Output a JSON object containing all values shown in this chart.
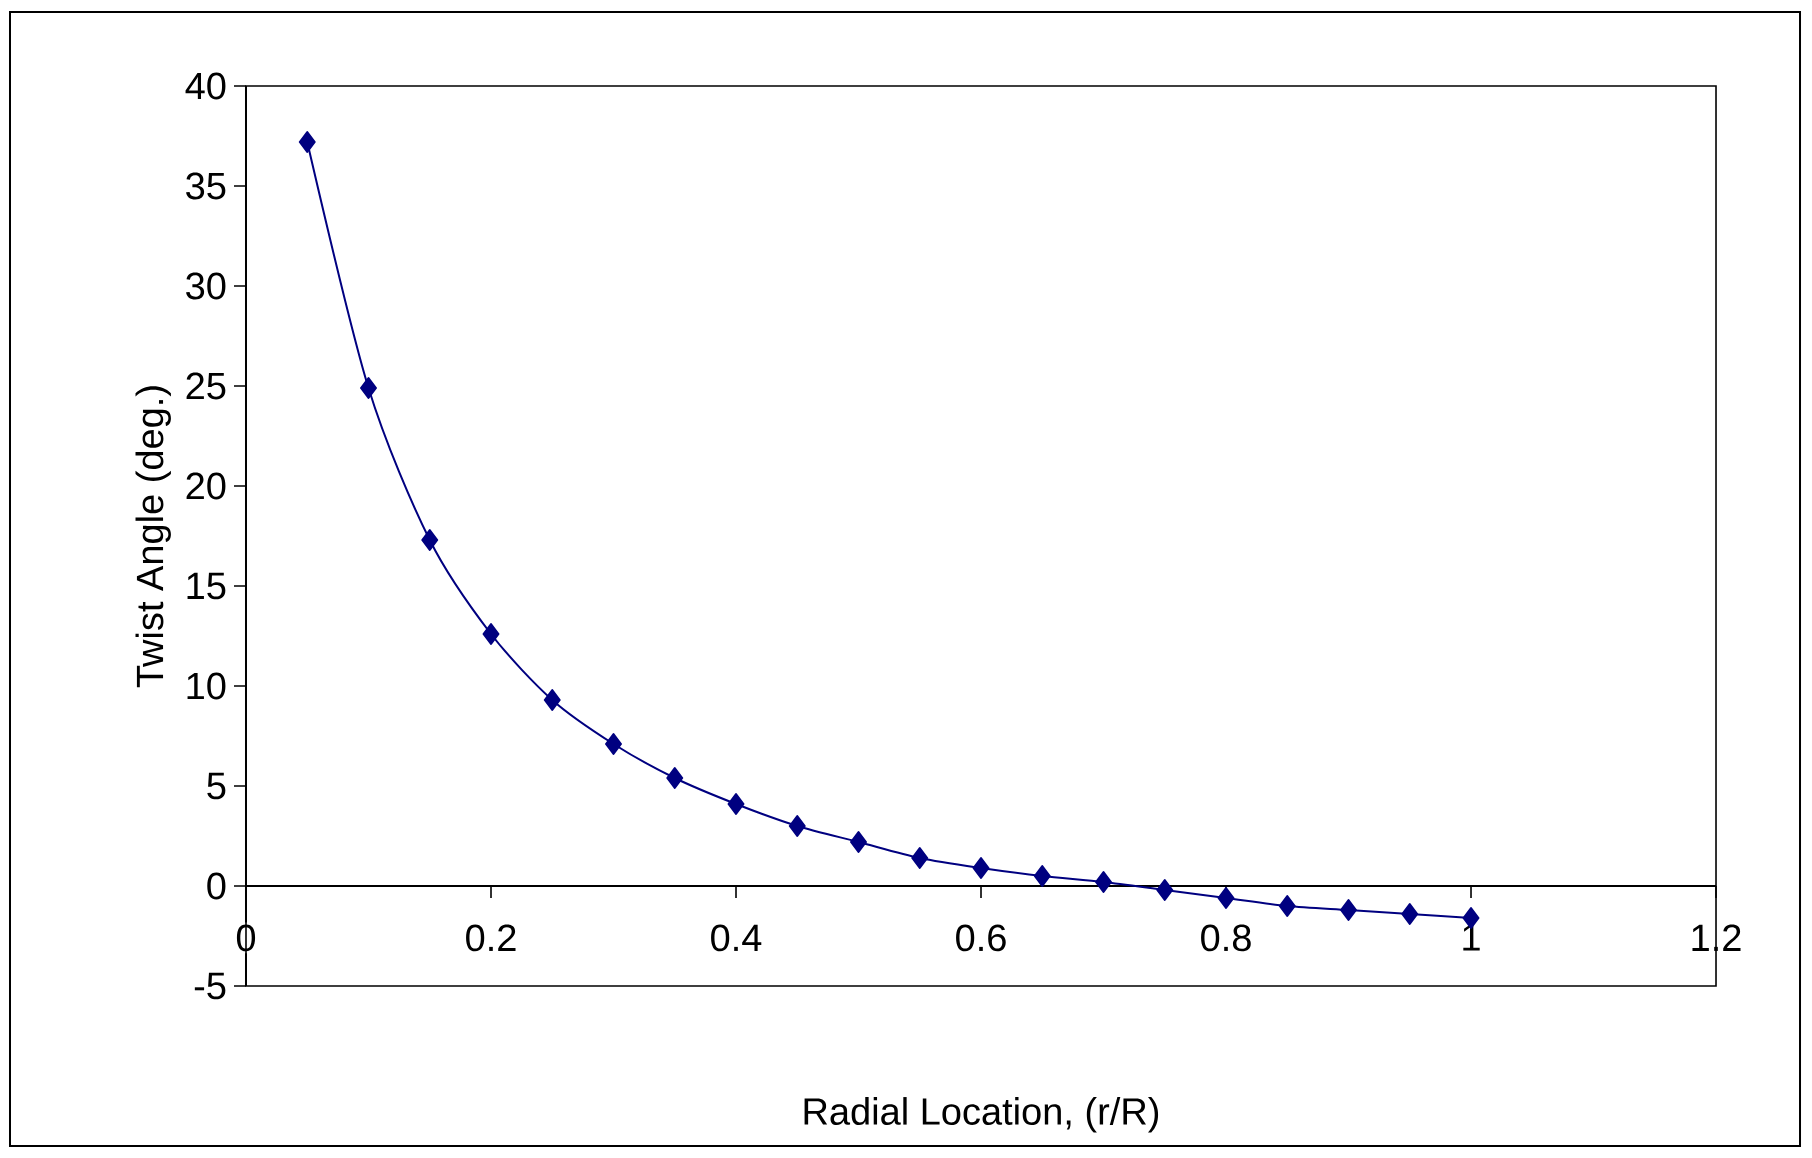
{
  "chart_data": {
    "type": "line",
    "xlabel": "Radial Location, (r/R)",
    "ylabel": "Twist Angle (deg.)",
    "x": [
      0.05,
      0.1,
      0.15,
      0.2,
      0.25,
      0.3,
      0.35,
      0.4,
      0.45,
      0.5,
      0.55,
      0.6,
      0.65,
      0.7,
      0.75,
      0.8,
      0.85,
      0.9,
      0.95,
      1.0
    ],
    "values": [
      37.2,
      24.9,
      17.3,
      12.6,
      9.3,
      7.1,
      5.4,
      4.1,
      3.0,
      2.2,
      1.4,
      0.9,
      0.5,
      0.2,
      -0.2,
      -0.6,
      -1.0,
      -1.2,
      -1.4,
      -1.6
    ],
    "color": "#000080",
    "marker": "diamond",
    "line_style": "solid",
    "xlim": [
      0,
      1.2
    ],
    "xticks": [
      0,
      0.2,
      0.4,
      0.6,
      0.8,
      1,
      1.2
    ],
    "ylim": [
      -5,
      40
    ],
    "yticks": [
      -5,
      0,
      5,
      10,
      15,
      20,
      25,
      30,
      35,
      40
    ]
  }
}
